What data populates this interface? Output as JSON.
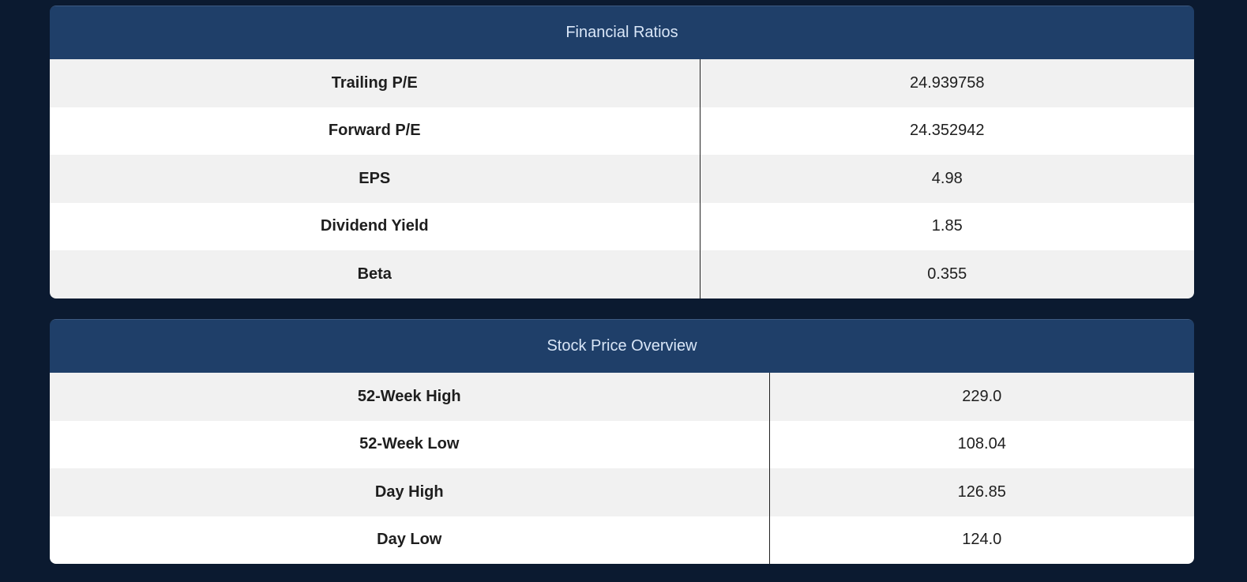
{
  "financial_ratios": {
    "title": "Financial Ratios",
    "rows": [
      {
        "label": "Trailing P/E",
        "value": "24.939758"
      },
      {
        "label": "Forward P/E",
        "value": "24.352942"
      },
      {
        "label": "EPS",
        "value": "4.98"
      },
      {
        "label": "Dividend Yield",
        "value": "1.85"
      },
      {
        "label": "Beta",
        "value": "0.355"
      }
    ]
  },
  "stock_price_overview": {
    "title": "Stock Price Overview",
    "rows": [
      {
        "label": "52-Week High",
        "value": "229.0"
      },
      {
        "label": "52-Week Low",
        "value": "108.04"
      },
      {
        "label": "Day High",
        "value": "126.85"
      },
      {
        "label": "Day Low",
        "value": "124.0"
      }
    ]
  },
  "colors": {
    "page_background": "#0b1a30",
    "header_background": "#1f3f69",
    "header_text": "#d9e6f7",
    "row_odd": "#f1f1f1",
    "row_even": "#ffffff"
  }
}
